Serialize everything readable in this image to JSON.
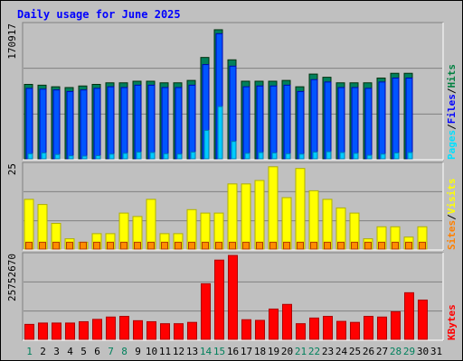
{
  "chart_data": {
    "type": "bar",
    "title": "Daily usage for June 2025",
    "categories": [
      "1",
      "2",
      "3",
      "4",
      "5",
      "6",
      "7",
      "8",
      "9",
      "10",
      "11",
      "12",
      "13",
      "14",
      "15",
      "16",
      "17",
      "18",
      "19",
      "20",
      "21",
      "22",
      "23",
      "24",
      "25",
      "26",
      "27",
      "28",
      "29",
      "30",
      "31"
    ],
    "weekend_days": [
      1,
      7,
      8,
      14,
      15,
      21,
      22,
      28,
      29
    ],
    "panels": [
      {
        "name": "hits-files-pages",
        "max_label": "170917",
        "ymax": 170917,
        "legend": [
          {
            "label": "Pages",
            "color": "#00e0ff"
          },
          {
            "label": "Files",
            "color": "#0000ff"
          },
          {
            "label": "Hits",
            "color": "#008040"
          }
        ],
        "series": [
          {
            "name": "Hits",
            "color": "#00805c",
            "values": [
              94000,
              93000,
              91000,
              90000,
              92000,
              94000,
              96000,
              96000,
              98000,
              98000,
              96000,
              96000,
              99000,
              128000,
              163000,
              125000,
              98000,
              98000,
              98000,
              99000,
              91000,
              107000,
              103000,
              96000,
              96000,
              96000,
              102000,
              108000,
              108000,
              null,
              null
            ]
          },
          {
            "name": "Files",
            "color": "#0055ff",
            "values": [
              89000,
              88000,
              87000,
              85000,
              87000,
              89000,
              91000,
              90000,
              93000,
              93000,
              90000,
              90000,
              93000,
              119000,
              158000,
              117000,
              91000,
              92000,
              92000,
              93000,
              85000,
              100000,
              97000,
              90000,
              90000,
              89000,
              97000,
              102000,
              102000,
              null,
              null
            ]
          },
          {
            "name": "Pages",
            "color": "#00ccff",
            "values": [
              6500,
              7500,
              5500,
              3800,
              3500,
              4000,
              6000,
              7000,
              8500,
              8000,
              6500,
              6000,
              8500,
              36000,
              66000,
              22000,
              7000,
              8000,
              7500,
              6500,
              6000,
              8500,
              9000,
              8000,
              7000,
              4500,
              6000,
              7500,
              8000,
              null,
              null
            ]
          }
        ]
      },
      {
        "name": "visits-sites",
        "max_label": "25",
        "ymax": 25,
        "legend": [
          {
            "label": "Sites",
            "color": "#ff8000"
          },
          {
            "label": "Visits",
            "color": "#ffff00"
          }
        ],
        "series": [
          {
            "name": "Visits",
            "color": "#ffff00",
            "values": [
              14.5,
              13,
              7.5,
              3,
              2,
              4.5,
              4.5,
              10.5,
              9.5,
              14.5,
              4.5,
              4.5,
              11.5,
              10.5,
              10.5,
              19,
              19,
              20,
              24,
              15,
              23.5,
              17,
              14.5,
              12,
              10.5,
              3,
              6.5,
              6.5,
              3.5,
              6.5,
              null
            ]
          },
          {
            "name": "Sites",
            "color": "#ff8c00",
            "values": [
              2,
              2,
              2,
              2,
              2,
              2,
              2,
              2,
              2,
              2,
              2,
              2,
              2,
              2,
              2,
              2,
              2,
              2,
              2,
              2,
              2,
              2,
              2,
              2,
              2,
              2,
              2,
              2,
              2,
              2,
              null
            ]
          }
        ]
      },
      {
        "name": "kbytes",
        "max_label": "25752670",
        "ymax": 25752670,
        "legend": [
          {
            "label": "KBytes",
            "color": "#ff0000"
          }
        ],
        "series": [
          {
            "name": "KBytes",
            "color": "#ff0000",
            "values": [
              4500000,
              4900000,
              4900000,
              4900000,
              5300000,
              6000000,
              6700000,
              6900000,
              5600000,
              5300000,
              4700000,
              4700000,
              5100000,
              16700000,
              23800000,
              25200000,
              5900000,
              5700000,
              9100000,
              10500000,
              4700000,
              6400000,
              6900000,
              5400000,
              5100000,
              6900000,
              6700000,
              8300000,
              14000000,
              11800000,
              null
            ]
          }
        ]
      }
    ]
  }
}
